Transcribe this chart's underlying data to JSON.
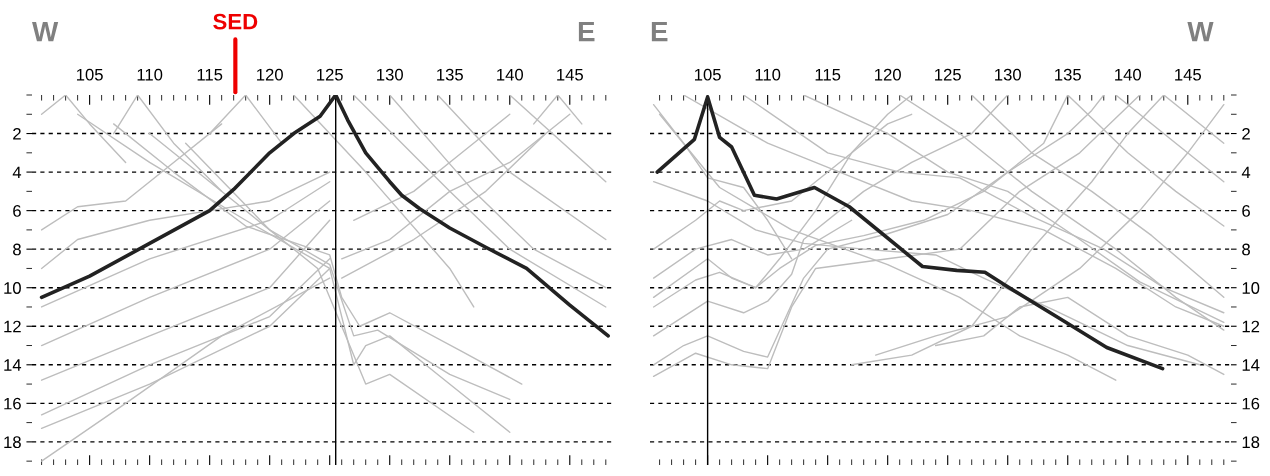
{
  "chart_data": [
    {
      "type": "line",
      "xlim": [
        100.2,
        148.6
      ],
      "ylim": [
        19.2,
        0
      ],
      "xticks": [
        105,
        110,
        115,
        120,
        125,
        130,
        135,
        140,
        145
      ],
      "yticks": [
        2,
        4,
        6,
        8,
        10,
        12,
        14,
        16,
        18
      ],
      "grid": "y",
      "legend": false,
      "annotations": [
        "W",
        "E",
        "SED"
      ],
      "ref_lines": [
        {
          "axis": "x",
          "value": 125.5,
          "color": "#000000"
        }
      ],
      "series": [
        {
          "color": "#222222",
          "x": [
            101,
            105,
            110,
            115,
            117,
            120,
            122,
            124.2,
            125.5,
            126.5,
            128,
            130,
            131,
            132.5,
            135,
            138,
            141.4,
            145,
            148.2
          ],
          "values": [
            10.5,
            9.4,
            7.7,
            6.0,
            4.9,
            3.0,
            2.0,
            1.1,
            0,
            1.3,
            3.0,
            4.5,
            5.2,
            5.9,
            6.9,
            7.9,
            9.0,
            10.9,
            12.5
          ]
        },
        {
          "color": "#bdbdbd",
          "x": [
            101,
            110,
            120,
            125
          ],
          "values": [
            11.0,
            8.5,
            6.5,
            4.5
          ]
        },
        {
          "color": "#bdbdbd",
          "x": [
            101,
            110,
            120,
            125
          ],
          "values": [
            13.0,
            10.5,
            8.0,
            5.5
          ]
        },
        {
          "color": "#bdbdbd",
          "x": [
            101,
            110,
            120,
            125
          ],
          "values": [
            14.8,
            12.5,
            10.0,
            6.5
          ]
        },
        {
          "color": "#bdbdbd",
          "x": [
            101,
            110,
            120,
            125
          ],
          "values": [
            16.6,
            14.0,
            11.5,
            8.5
          ]
        },
        {
          "color": "#bdbdbd",
          "x": [
            101,
            110,
            120,
            125
          ],
          "values": [
            17.3,
            15.0,
            12.0,
            9.0
          ]
        },
        {
          "color": "#bdbdbd",
          "x": [
            101,
            108,
            116,
            125
          ],
          "values": [
            19.0,
            16.0,
            12.5,
            9.5
          ]
        },
        {
          "color": "#bdbdbd",
          "x": [
            101,
            104,
            110,
            115,
            120,
            125
          ],
          "values": [
            9.0,
            7.5,
            6.5,
            6.0,
            5.5,
            4.0
          ]
        },
        {
          "color": "#bdbdbd",
          "x": [
            101,
            104,
            108,
            112,
            116
          ],
          "values": [
            7.0,
            5.8,
            5.5,
            3.5,
            1.5
          ]
        },
        {
          "color": "#bdbdbd",
          "x": [
            104,
            110,
            118,
            125,
            126,
            127,
            128,
            130,
            134,
            140
          ],
          "values": [
            1.0,
            3.5,
            6.5,
            9.0,
            11.5,
            14.0,
            13.0,
            12.5,
            14.5,
            17.5
          ]
        },
        {
          "color": "#bdbdbd",
          "x": [
            107,
            112,
            118,
            125,
            126,
            127.5,
            130,
            136,
            141
          ],
          "values": [
            1.5,
            4.0,
            6.8,
            8.3,
            10.5,
            12.0,
            11.3,
            13.3,
            15.0
          ]
        },
        {
          "color": "#bdbdbd",
          "x": [
            110,
            115,
            120,
            125,
            127,
            129,
            135,
            140
          ],
          "values": [
            2.0,
            4.5,
            7.0,
            8.8,
            12.5,
            12.2,
            14.5,
            15.8
          ]
        },
        {
          "color": "#bdbdbd",
          "x": [
            113,
            120,
            124,
            126,
            128,
            130,
            137
          ],
          "values": [
            2.5,
            7.0,
            9.0,
            12.0,
            15.0,
            14.5,
            17.5
          ]
        },
        {
          "color": "#bdbdbd",
          "x": [
            126,
            130,
            135,
            140,
            145
          ],
          "values": [
            8.5,
            7.5,
            5.0,
            3.5,
            1.0
          ]
        },
        {
          "color": "#bdbdbd",
          "x": [
            126,
            132,
            138,
            143
          ],
          "values": [
            9.5,
            7.5,
            5.0,
            2.0
          ]
        },
        {
          "color": "#bdbdbd",
          "x": [
            127,
            132,
            136,
            140
          ],
          "values": [
            6.5,
            5.0,
            3.0,
            1.0
          ]
        },
        {
          "color": "#bdbdbd",
          "x": [
            127,
            135,
            140,
            148
          ],
          "values": [
            0,
            5.0,
            8.0,
            11.0
          ]
        },
        {
          "color": "#bdbdbd",
          "x": [
            130,
            137,
            142,
            148
          ],
          "values": [
            0,
            5.0,
            8.0,
            10.0
          ]
        },
        {
          "color": "#bdbdbd",
          "x": [
            134,
            140,
            148
          ],
          "values": [
            0,
            4.0,
            7.5
          ]
        },
        {
          "color": "#bdbdbd",
          "x": [
            140,
            148
          ],
          "values": [
            0,
            4.5
          ]
        },
        {
          "color": "#bdbdbd",
          "x": [
            122,
            128,
            135,
            137
          ],
          "values": [
            0,
            4.0,
            9.0,
            11.0
          ]
        },
        {
          "color": "#bdbdbd",
          "x": [
            101,
            103,
            105,
            108
          ],
          "values": [
            1.0,
            0,
            1.5,
            3.5
          ]
        },
        {
          "color": "#bdbdbd",
          "x": [
            107,
            109,
            112,
            116
          ],
          "values": [
            2.0,
            0,
            2.5,
            5.0
          ]
        },
        {
          "color": "#bdbdbd",
          "x": [
            115,
            118,
            121
          ],
          "values": [
            2.0,
            0,
            2.5
          ]
        },
        {
          "color": "#bdbdbd",
          "x": [
            142,
            144,
            146
          ],
          "values": [
            1.5,
            0,
            1.5
          ]
        }
      ]
    },
    {
      "type": "line",
      "xlim": [
        100.2,
        148.6
      ],
      "ylim": [
        19.2,
        0
      ],
      "xticks": [
        105,
        110,
        115,
        120,
        125,
        130,
        135,
        140,
        145
      ],
      "yticks": [
        2,
        4,
        6,
        8,
        10,
        12,
        14,
        16,
        18
      ],
      "grid": "y",
      "legend": false,
      "annotations": [
        "E",
        "W"
      ],
      "ref_lines": [
        {
          "axis": "x",
          "value": 105,
          "color": "#000000"
        }
      ],
      "series": [
        {
          "color": "#222222",
          "x": [
            100.8,
            103.9,
            105,
            106,
            107,
            108.9,
            110.75,
            113.9,
            116.8,
            122.9,
            125.75,
            128.1,
            129.6,
            134.6,
            138.25,
            142.9
          ],
          "values": [
            4.0,
            2.3,
            0.1,
            2.2,
            2.7,
            5.2,
            5.4,
            4.8,
            5.8,
            8.9,
            9.1,
            9.2,
            9.8,
            11.7,
            13.1,
            14.2
          ]
        },
        {
          "color": "#bdbdbd",
          "x": [
            100.5,
            103,
            105,
            108,
            110,
            112
          ],
          "values": [
            0.5,
            2.5,
            4.3,
            4.8,
            6.5,
            8.5
          ]
        },
        {
          "color": "#bdbdbd",
          "x": [
            100.5,
            105,
            107,
            109,
            111,
            114,
            117,
            120,
            122
          ],
          "values": [
            10.5,
            8.5,
            9.5,
            10.0,
            8.5,
            6.0,
            3.0,
            1.0,
            0
          ]
        },
        {
          "color": "#bdbdbd",
          "x": [
            100.5,
            103,
            105,
            108,
            110,
            113,
            115,
            120,
            125,
            130,
            135,
            137,
            138
          ],
          "values": [
            14.0,
            13.0,
            12.5,
            13.3,
            13.6,
            9.5,
            8.0,
            7.2,
            6.2,
            4.0,
            2.0,
            0.8,
            0
          ]
        },
        {
          "color": "#bdbdbd",
          "x": [
            100.5,
            104,
            107,
            110,
            112,
            114,
            120,
            126,
            131,
            136,
            141
          ],
          "values": [
            14.6,
            13.4,
            14.0,
            14.2,
            11.0,
            9.0,
            8.5,
            8.0,
            5.0,
            3.0,
            0
          ]
        },
        {
          "color": "#bdbdbd",
          "x": [
            100.5,
            105,
            108,
            110,
            112,
            113,
            118,
            122,
            127,
            130
          ],
          "values": [
            12.5,
            10.7,
            11.3,
            10.7,
            9.3,
            7.5,
            5.0,
            3.5,
            2.0,
            0
          ]
        },
        {
          "color": "#bdbdbd",
          "x": [
            100.5,
            104,
            106,
            109,
            111,
            114,
            118,
            123,
            128,
            133,
            135
          ],
          "values": [
            11.0,
            9.6,
            9.2,
            10.0,
            9.0,
            7.8,
            7.3,
            6.5,
            5.0,
            2.5,
            0
          ]
        },
        {
          "color": "#bdbdbd",
          "x": [
            100.5,
            104,
            106,
            108,
            112,
            116,
            120,
            122
          ],
          "values": [
            8.0,
            6.5,
            5.5,
            6.0,
            5.5,
            3.5,
            1.5,
            1.0
          ]
        },
        {
          "color": "#bdbdbd",
          "x": [
            100.5,
            105,
            109,
            113,
            118,
            124,
            128,
            134,
            140,
            146
          ],
          "values": [
            4.5,
            5.5,
            7.0,
            7.7,
            8.0,
            8.3,
            9.5,
            11.2,
            13.0,
            14.0
          ]
        },
        {
          "color": "#bdbdbd",
          "x": [
            101,
            106,
            112,
            120,
            126,
            131,
            135,
            139
          ],
          "values": [
            1.0,
            4.8,
            7.0,
            8.8,
            10.5,
            12.5,
            13.5,
            14.8
          ]
        },
        {
          "color": "#bdbdbd",
          "x": [
            119,
            124,
            130,
            136,
            141,
            145,
            148
          ],
          "values": [
            13.5,
            12.5,
            11.5,
            9.0,
            6.0,
            3.0,
            0.5
          ]
        },
        {
          "color": "#bdbdbd",
          "x": [
            117,
            122,
            127,
            132,
            137,
            140,
            143
          ],
          "values": [
            14.0,
            13.5,
            12.0,
            8.0,
            4.5,
            2.0,
            0
          ]
        },
        {
          "color": "#bdbdbd",
          "x": [
            103,
            110,
            116,
            122,
            127,
            133,
            139,
            144,
            148
          ],
          "values": [
            0,
            2.5,
            4.0,
            5.5,
            6.0,
            7.0,
            9.0,
            11.0,
            12.0
          ]
        },
        {
          "color": "#bdbdbd",
          "x": [
            108,
            115,
            121,
            126,
            132,
            138,
            143,
            148
          ],
          "values": [
            0,
            3.0,
            4.0,
            4.3,
            6.3,
            8.0,
            10.0,
            11.3
          ]
        },
        {
          "color": "#bdbdbd",
          "x": [
            113,
            120,
            125,
            130,
            136,
            141,
            148
          ],
          "values": [
            0,
            2.0,
            4.0,
            5.0,
            7.5,
            9.7,
            11.8
          ]
        },
        {
          "color": "#bdbdbd",
          "x": [
            121,
            126,
            132,
            139,
            144,
            148
          ],
          "values": [
            0,
            2.0,
            5.0,
            8.0,
            10.5,
            12.2
          ]
        },
        {
          "color": "#bdbdbd",
          "x": [
            127,
            132,
            137,
            142,
            148
          ],
          "values": [
            0,
            3.0,
            5.0,
            7.3,
            10.5
          ]
        },
        {
          "color": "#bdbdbd",
          "x": [
            135,
            140,
            144,
            148
          ],
          "values": [
            0,
            3.0,
            5.0,
            6.8
          ]
        },
        {
          "color": "#bdbdbd",
          "x": [
            139,
            144,
            148
          ],
          "values": [
            0,
            2.5,
            4.5
          ]
        },
        {
          "color": "#bdbdbd",
          "x": [
            143,
            148
          ],
          "values": [
            0,
            2.5
          ]
        },
        {
          "color": "#bdbdbd",
          "x": [
            124,
            128,
            131,
            135,
            140,
            145,
            148
          ],
          "values": [
            13.0,
            12.5,
            11.0,
            10.5,
            12.5,
            13.5,
            14.5
          ]
        },
        {
          "color": "#bdbdbd",
          "x": [
            100.5,
            104,
            107,
            110,
            113,
            117
          ],
          "values": [
            9.5,
            8.0,
            7.5,
            8.3,
            8.0,
            6.5
          ]
        }
      ]
    }
  ]
}
